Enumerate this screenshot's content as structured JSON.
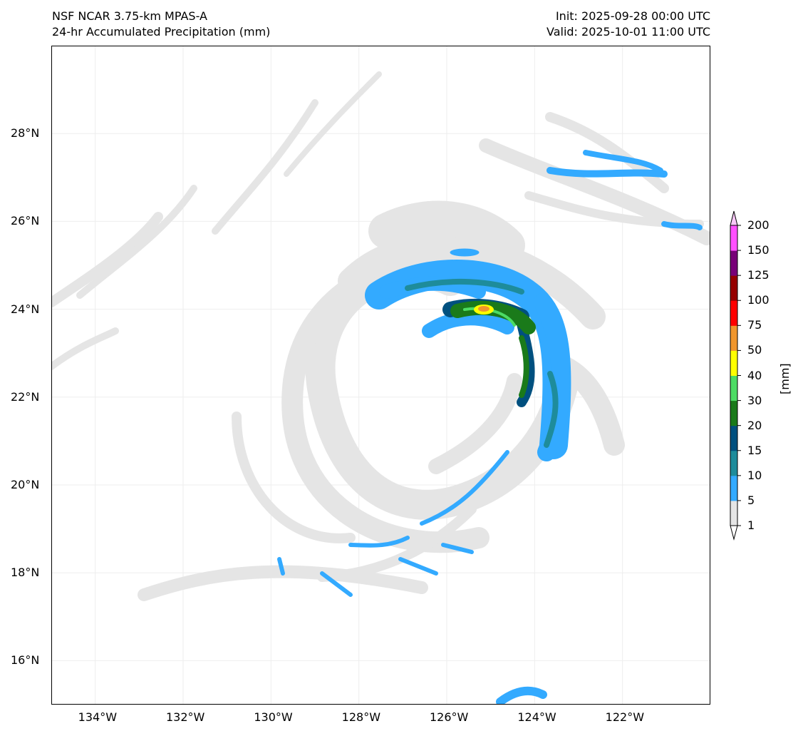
{
  "title_left": [
    "NSF NCAR 3.75-km MPAS-A",
    "24-hr Accumulated Precipitation (mm)"
  ],
  "title_right": [
    "Init: 2025-09-28 00:00 UTC",
    "Valid: 2025-10-01 11:00 UTC"
  ],
  "map": {
    "lon_range": [
      -135,
      -120
    ],
    "lat_range": [
      15,
      30
    ],
    "lon_ticks": [
      {
        "v": -134,
        "label": "134°W"
      },
      {
        "v": -132,
        "label": "132°W"
      },
      {
        "v": -130,
        "label": "130°W"
      },
      {
        "v": -128,
        "label": "128°W"
      },
      {
        "v": -126,
        "label": "126°W"
      },
      {
        "v": -124,
        "label": "124°W"
      },
      {
        "v": -122,
        "label": "122°W"
      }
    ],
    "lat_ticks": [
      {
        "v": 28,
        "label": "28°N"
      },
      {
        "v": 26,
        "label": "26°N"
      },
      {
        "v": 24,
        "label": "24°N"
      },
      {
        "v": 22,
        "label": "22°N"
      },
      {
        "v": 20,
        "label": "20°N"
      },
      {
        "v": 18,
        "label": "18°N"
      },
      {
        "v": 16,
        "label": "16°N"
      }
    ]
  },
  "colorbar": {
    "unit": "[mm]",
    "levels": [
      "1",
      "5",
      "10",
      "15",
      "20",
      "30",
      "40",
      "50",
      "75",
      "100",
      "125",
      "150",
      "200"
    ],
    "colors": [
      "#e5e5e5",
      "#33aaff",
      "#1e8c9b",
      "#00507f",
      "#1a7a1a",
      "#4cdc64",
      "#ffff00",
      "#f0962d",
      "#ff0000",
      "#960000",
      "#780078",
      "#ff50ff"
    ],
    "over_color": "#f8c8f8",
    "under_color": "#ffffff"
  }
}
